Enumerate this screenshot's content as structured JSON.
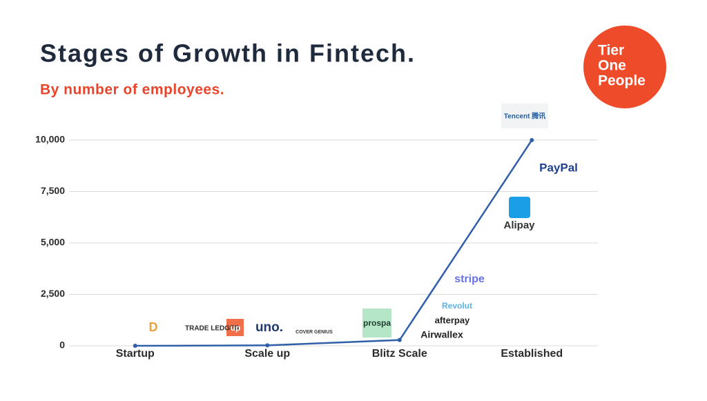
{
  "chart_data": {
    "type": "line",
    "title": "Stages of Growth in Fintech.",
    "subtitle": "By number of employees.",
    "brand": [
      "Tier",
      "One",
      "People"
    ],
    "categories": [
      "Startup",
      "Scale up",
      "Blitz Scale",
      "Established"
    ],
    "values": [
      0,
      20,
      280,
      10000
    ],
    "color": "#2e5fa8",
    "ylim": [
      0,
      10000
    ],
    "yticks": [
      0,
      {
        "value": 2500,
        "label": "2,500"
      },
      {
        "value": 5000,
        "label": "5,000"
      },
      {
        "value": 7500,
        "label": "7,500"
      },
      {
        "value": 10000,
        "label": "10,000"
      }
    ],
    "grid": true,
    "annotations": [
      "D",
      "TRADE LEDGER",
      "up",
      "uno.",
      "COVER GENIUS",
      "prospa",
      "stripe",
      "Revolut",
      "afterpay",
      "Airwallex",
      "Alipay",
      "PayPal",
      "Tencent 腾讯"
    ]
  }
}
